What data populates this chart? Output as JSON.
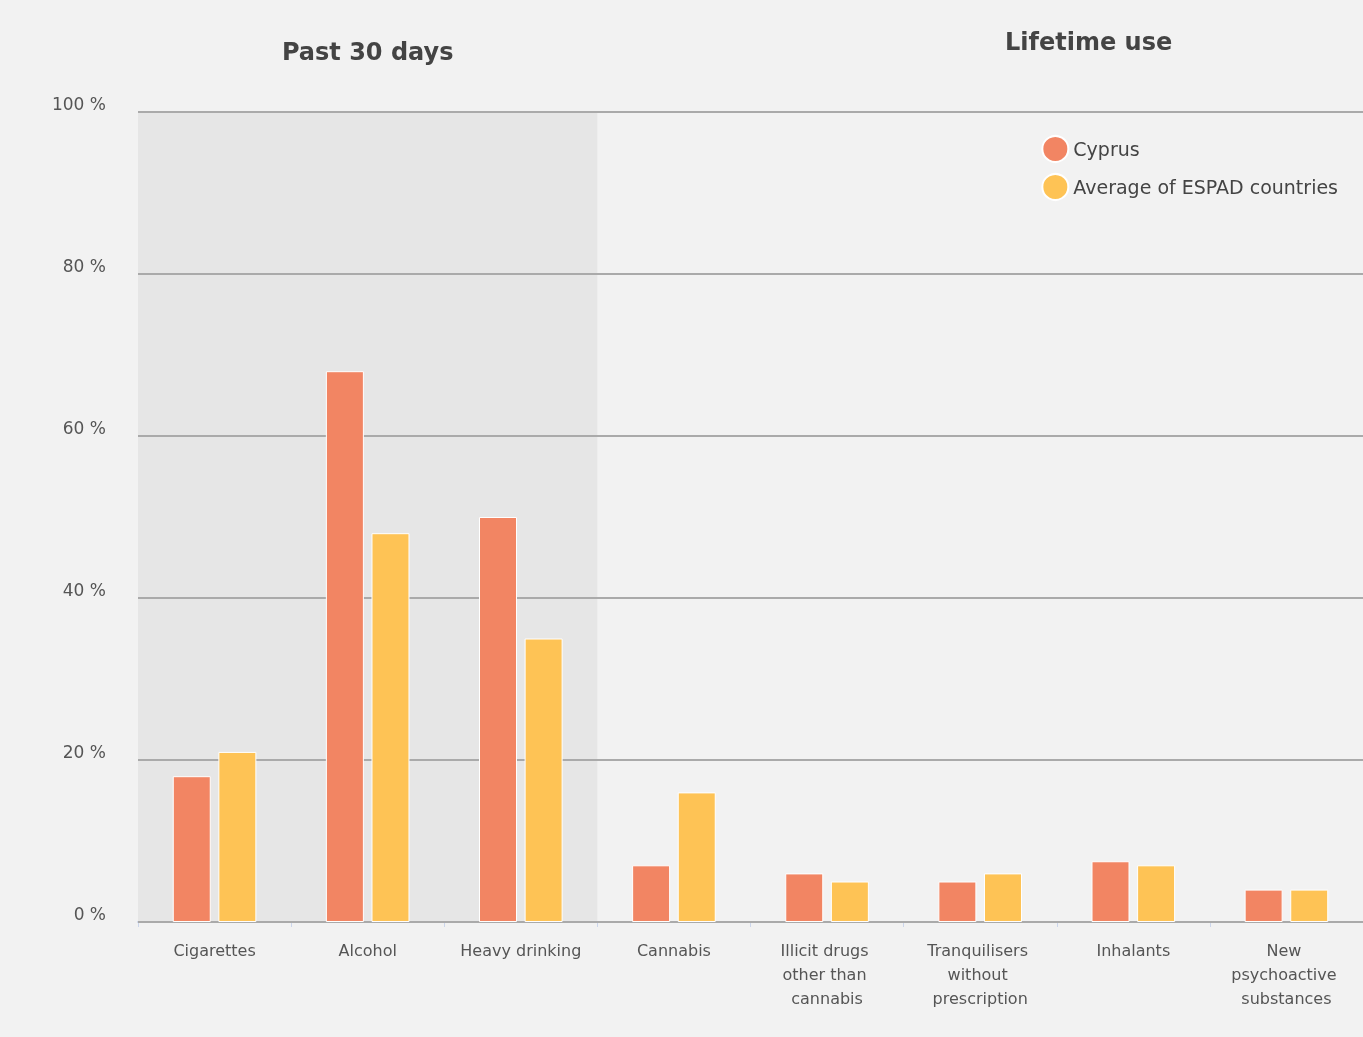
{
  "chart_data": {
    "type": "bar",
    "categories": [
      "Cigarettes",
      "Alcohol",
      "Heavy drinking",
      "Cannabis",
      "Illicit drugs other than cannabis",
      "Tranquilisers without prescription",
      "Inhalants",
      "New psychoactive substances"
    ],
    "series": [
      {
        "name": "Cyprus",
        "color": "#f28563",
        "values": [
          18,
          68,
          50,
          7,
          6,
          5,
          7.5,
          4
        ]
      },
      {
        "name": "Average of ESPAD countries",
        "color": "#fec355",
        "values": [
          21,
          48,
          35,
          16,
          5,
          6,
          7,
          4
        ]
      }
    ],
    "ylim": [
      0,
      100
    ],
    "yticks": [
      {
        "value": 0,
        "label": "0 %"
      },
      {
        "value": 20,
        "label": "20 %"
      },
      {
        "value": 40,
        "label": "40 %"
      },
      {
        "value": 60,
        "label": "60 %"
      },
      {
        "value": 80,
        "label": "80 %"
      },
      {
        "value": 100,
        "label": "100 %"
      }
    ],
    "bands": [
      {
        "axis": "x",
        "from": "Cigarettes",
        "to": "Heavy drinking",
        "label": "Past 30 days",
        "color": "#e6e6e6"
      }
    ],
    "annotations": [
      "Lifetime use"
    ],
    "grid": "y",
    "legend": "top right"
  }
}
